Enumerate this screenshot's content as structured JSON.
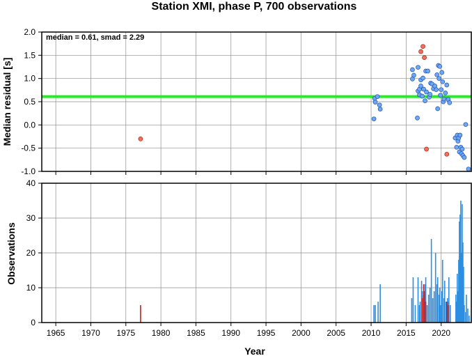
{
  "title": "Station XMI, phase P, 700 observations",
  "colors": {
    "inlier": "#6fa8f0",
    "inlier_edge": "#1f4fb4",
    "outlier": "#f07060",
    "outlier_edge": "#b02010",
    "median_line": "#22ee22",
    "obs_bar": "#2d8ee0",
    "obs_bar_outlier": "#cc2020",
    "grid": "#8c8c8c"
  },
  "chart_data": [
    {
      "type": "scatter",
      "annotation": "median = 0.61, smad = 2.29",
      "ylabel": "Median residual [s]",
      "xlim": [
        1963,
        2024.3
      ],
      "ylim": [
        -1.0,
        2.0
      ],
      "xticks": [
        1965,
        1970,
        1975,
        1980,
        1985,
        1990,
        1995,
        2000,
        2005,
        2010,
        2015,
        2020
      ],
      "yticks": [
        -1.0,
        -0.5,
        0.0,
        0.5,
        1.0,
        1.5,
        2.0
      ],
      "ytick_labels": [
        "-1.0",
        "-0.5",
        "0.0",
        "0.5",
        "1.0",
        "1.5",
        "2.0"
      ],
      "grid": true,
      "median_line": 0.61,
      "series": [
        {
          "points": [
            [
              2010.4,
              0.13
            ],
            [
              2010.5,
              0.57
            ],
            [
              2010.6,
              0.49
            ],
            [
              2010.9,
              0.61
            ],
            [
              2011.2,
              0.43
            ],
            [
              2011.3,
              0.34
            ],
            [
              2015.9,
              1.19
            ],
            [
              2015.9,
              0.99
            ],
            [
              2016.1,
              1.07
            ],
            [
              2016.6,
              0.15
            ],
            [
              2016.7,
              1.24
            ],
            [
              2016.7,
              0.73
            ],
            [
              2016.9,
              0.77
            ],
            [
              2016.9,
              0.65
            ],
            [
              2017.1,
              0.97
            ],
            [
              2017.1,
              0.84
            ],
            [
              2017.3,
              0.62
            ],
            [
              2017.4,
              1.01
            ],
            [
              2017.5,
              0.77
            ],
            [
              2017.7,
              0.52
            ],
            [
              2017.8,
              1.16
            ],
            [
              2017.9,
              0.71
            ],
            [
              2018.1,
              1.16
            ],
            [
              2018.3,
              0.6
            ],
            [
              2018.4,
              0.66
            ],
            [
              2018.5,
              0.9
            ],
            [
              2018.7,
              0.88
            ],
            [
              2018.9,
              0.78
            ],
            [
              2019.1,
              0.84
            ],
            [
              2019.3,
              0.76
            ],
            [
              2019.4,
              1.08
            ],
            [
              2019.5,
              0.35
            ],
            [
              2019.6,
              1.28
            ],
            [
              2019.7,
              1.0
            ],
            [
              2019.8,
              1.26
            ],
            [
              2019.9,
              0.64
            ],
            [
              2020.0,
              0.76
            ],
            [
              2020.1,
              1.13
            ],
            [
              2020.2,
              0.93
            ],
            [
              2020.3,
              0.5
            ],
            [
              2020.4,
              0.56
            ],
            [
              2020.6,
              0.69
            ],
            [
              2020.8,
              0.86
            ],
            [
              2021.0,
              0.55
            ],
            [
              2021.2,
              0.48
            ],
            [
              2022.0,
              -0.28
            ],
            [
              2022.2,
              -0.48
            ],
            [
              2022.3,
              -0.22
            ],
            [
              2022.4,
              -0.35
            ],
            [
              2022.5,
              -0.28
            ],
            [
              2022.6,
              -0.58
            ],
            [
              2022.7,
              -0.22
            ],
            [
              2022.8,
              -0.48
            ],
            [
              2022.9,
              -0.62
            ],
            [
              2023.0,
              -0.52
            ],
            [
              2023.1,
              -0.66
            ],
            [
              2023.3,
              -0.7
            ],
            [
              2023.5,
              0.01
            ],
            [
              2023.9,
              -0.95
            ]
          ],
          "role": "inlier"
        },
        {
          "points": [
            [
              1977.1,
              -0.3
            ],
            [
              2017.1,
              1.58
            ],
            [
              2017.4,
              1.69
            ],
            [
              2017.6,
              1.45
            ],
            [
              2017.9,
              -0.52
            ],
            [
              2020.8,
              -0.63
            ]
          ],
          "role": "outlier"
        }
      ]
    },
    {
      "type": "bar",
      "ylabel": "Observations",
      "xlabel": "Year",
      "xlim": [
        1963,
        2024.3
      ],
      "ylim": [
        0,
        40
      ],
      "xticks": [
        1965,
        1970,
        1975,
        1980,
        1985,
        1990,
        1995,
        2000,
        2005,
        2010,
        2015,
        2020
      ],
      "yticks": [
        0,
        10,
        20,
        30,
        40
      ],
      "grid": true,
      "series": [
        {
          "bars": [
            [
              2010.4,
              5
            ],
            [
              2010.6,
              5
            ],
            [
              2011.0,
              6
            ],
            [
              2011.3,
              11
            ],
            [
              2015.8,
              7
            ],
            [
              2016.0,
              13
            ],
            [
              2016.3,
              5
            ],
            [
              2016.7,
              13
            ],
            [
              2016.9,
              5
            ],
            [
              2017.0,
              6
            ],
            [
              2017.2,
              12
            ],
            [
              2017.3,
              9
            ],
            [
              2017.5,
              8
            ],
            [
              2017.7,
              11
            ],
            [
              2017.8,
              13
            ],
            [
              2018.0,
              5
            ],
            [
              2018.2,
              8
            ],
            [
              2018.4,
              10
            ],
            [
              2018.6,
              24
            ],
            [
              2018.8,
              7
            ],
            [
              2019.0,
              9
            ],
            [
              2019.2,
              20
            ],
            [
              2019.4,
              11
            ],
            [
              2019.5,
              13
            ],
            [
              2019.7,
              8
            ],
            [
              2019.8,
              10
            ],
            [
              2019.9,
              5
            ],
            [
              2020.1,
              9
            ],
            [
              2020.2,
              18
            ],
            [
              2020.4,
              7
            ],
            [
              2020.5,
              12
            ],
            [
              2020.7,
              6
            ],
            [
              2020.9,
              7
            ],
            [
              2021.0,
              6
            ],
            [
              2021.1,
              13
            ],
            [
              2021.3,
              5
            ],
            [
              2022.1,
              8
            ],
            [
              2022.2,
              6
            ],
            [
              2022.3,
              14
            ],
            [
              2022.4,
              9
            ],
            [
              2022.5,
              18
            ],
            [
              2022.6,
              29
            ],
            [
              2022.7,
              31
            ],
            [
              2022.8,
              35
            ],
            [
              2022.9,
              20
            ],
            [
              2023.0,
              34
            ],
            [
              2023.1,
              23
            ],
            [
              2023.2,
              16
            ],
            [
              2023.3,
              5
            ],
            [
              2023.5,
              3
            ],
            [
              2023.6,
              8
            ],
            [
              2023.8,
              4
            ],
            [
              2024.0,
              2
            ]
          ],
          "role": "inlier"
        },
        {
          "bars": [
            [
              1977.1,
              5
            ],
            [
              2017.3,
              7
            ],
            [
              2017.5,
              11
            ],
            [
              2017.6,
              9
            ],
            [
              2017.8,
              6
            ],
            [
              2020.8,
              6
            ],
            [
              2021.0,
              5
            ]
          ],
          "role": "outlier"
        }
      ]
    }
  ]
}
